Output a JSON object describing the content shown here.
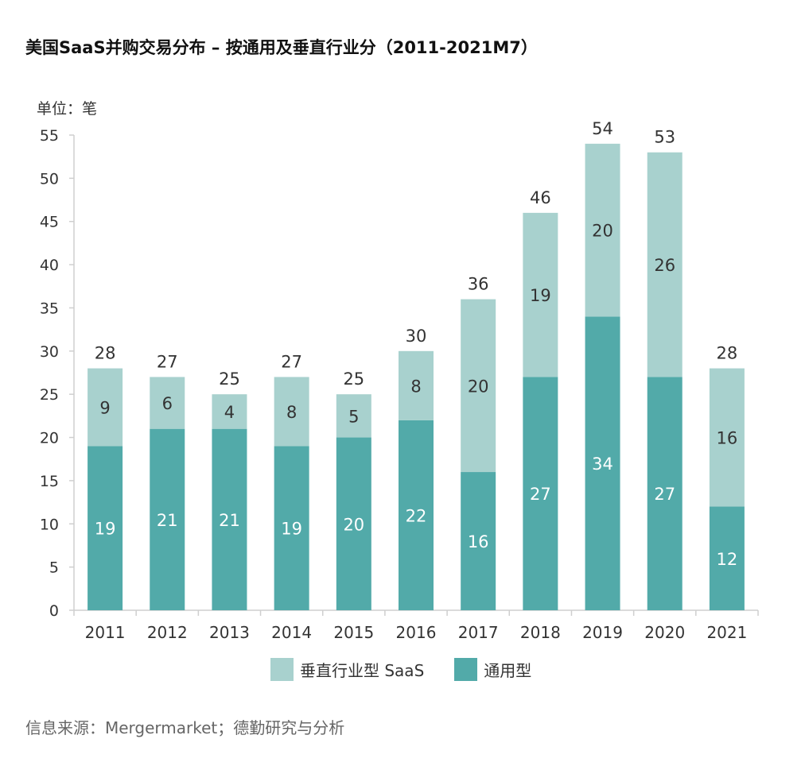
{
  "title": "美国SaaS并购交易分布 – 按通用及垂直行业分（2011-2021M7）",
  "unit_label": "单位：笔",
  "source": "信息来源：Mergermarket；德勤研究与分析",
  "colors": {
    "general": "#52aaa9",
    "vertical": "#a8d1ce",
    "axis": "#cfcfcf"
  },
  "legend": [
    {
      "key": "vertical",
      "label": "垂直行业型 SaaS"
    },
    {
      "key": "general",
      "label": "通用型"
    }
  ],
  "chart_data": {
    "type": "bar",
    "stacked": true,
    "categories": [
      "2011",
      "2012",
      "2013",
      "2014",
      "2015",
      "2016",
      "2017",
      "2018",
      "2019",
      "2020",
      "2021"
    ],
    "series": [
      {
        "name": "通用型",
        "key": "general",
        "values": [
          19,
          21,
          21,
          19,
          20,
          22,
          16,
          27,
          34,
          27,
          12
        ]
      },
      {
        "name": "垂直行业型 SaaS",
        "key": "vertical",
        "values": [
          9,
          6,
          4,
          8,
          5,
          8,
          20,
          19,
          20,
          26,
          16
        ]
      }
    ],
    "totals": [
      28,
      27,
      25,
      27,
      25,
      30,
      36,
      46,
      54,
      53,
      28
    ],
    "ylim": [
      0,
      55
    ],
    "yticks": [
      0,
      5,
      10,
      15,
      20,
      25,
      30,
      35,
      40,
      45,
      50,
      55
    ],
    "ylabel": "单位：笔",
    "grid": false,
    "legend_position": "bottom"
  }
}
